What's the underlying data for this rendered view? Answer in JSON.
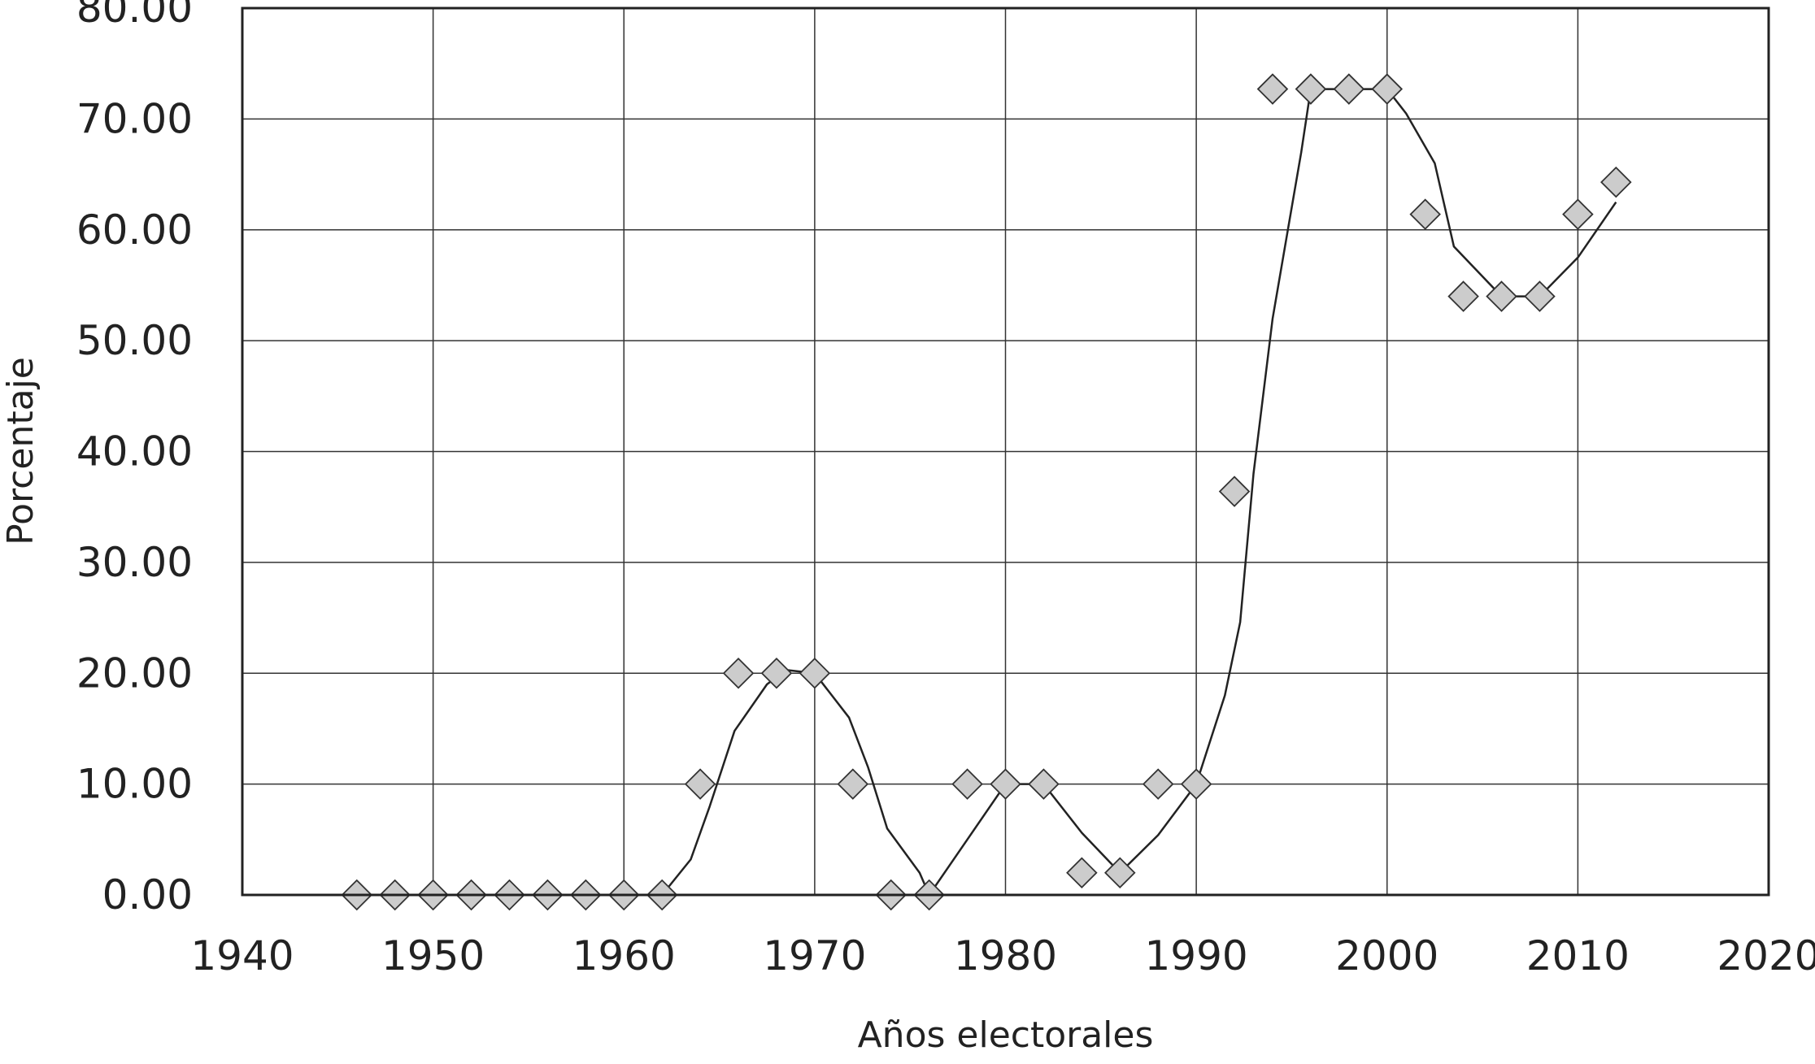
{
  "chart_data": {
    "type": "scatter",
    "title": "",
    "xlabel": "Años electorales",
    "ylabel": "Porcentaje",
    "xlim": [
      1940,
      2020
    ],
    "ylim": [
      0,
      80
    ],
    "grid": true,
    "x_ticks": [
      1940,
      1950,
      1960,
      1970,
      1980,
      1990,
      2000,
      2010,
      2020
    ],
    "y_ticks": [
      0,
      10,
      20,
      30,
      40,
      50,
      60,
      70,
      80
    ],
    "x_tick_labels": [
      "1940",
      "1950",
      "1960",
      "1970",
      "1980",
      "1990",
      "2000",
      "2010",
      "2020"
    ],
    "y_tick_labels": [
      "0.00",
      "10.00",
      "20.00",
      "30.00",
      "40.00",
      "50.00",
      "60.00",
      "70.00",
      "80.00"
    ],
    "marker": "diamond",
    "marker_color": "#cccccc",
    "line_color": "#222222",
    "points": [
      {
        "x": 1946,
        "y": 0
      },
      {
        "x": 1948,
        "y": 0
      },
      {
        "x": 1950,
        "y": 0
      },
      {
        "x": 1952,
        "y": 0
      },
      {
        "x": 1954,
        "y": 0
      },
      {
        "x": 1956,
        "y": 0
      },
      {
        "x": 1958,
        "y": 0
      },
      {
        "x": 1960,
        "y": 0
      },
      {
        "x": 1962,
        "y": 0
      },
      {
        "x": 1964,
        "y": 10
      },
      {
        "x": 1966,
        "y": 20
      },
      {
        "x": 1968,
        "y": 20
      },
      {
        "x": 1970,
        "y": 20
      },
      {
        "x": 1972,
        "y": 10
      },
      {
        "x": 1974,
        "y": 0
      },
      {
        "x": 1976,
        "y": 0
      },
      {
        "x": 1978,
        "y": 10
      },
      {
        "x": 1980,
        "y": 10
      },
      {
        "x": 1982,
        "y": 10
      },
      {
        "x": 1984,
        "y": 2
      },
      {
        "x": 1986,
        "y": 2
      },
      {
        "x": 1988,
        "y": 10
      },
      {
        "x": 1990,
        "y": 10
      },
      {
        "x": 1992,
        "y": 36.4
      },
      {
        "x": 1994,
        "y": 72.7
      },
      {
        "x": 1996,
        "y": 72.7
      },
      {
        "x": 1998,
        "y": 72.7
      },
      {
        "x": 2000,
        "y": 72.7
      },
      {
        "x": 2002,
        "y": 61.4
      },
      {
        "x": 2004,
        "y": 54
      },
      {
        "x": 2006,
        "y": 54
      },
      {
        "x": 2008,
        "y": 54
      },
      {
        "x": 2010,
        "y": 61.4
      },
      {
        "x": 2012,
        "y": 64.3
      }
    ],
    "trend_line": [
      {
        "x": 1962,
        "y": 0
      },
      {
        "x": 1963.5,
        "y": 3.2
      },
      {
        "x": 1964.5,
        "y": 8
      },
      {
        "x": 1965.8,
        "y": 14.8
      },
      {
        "x": 1967.5,
        "y": 19
      },
      {
        "x": 1968.5,
        "y": 20.3
      },
      {
        "x": 1970,
        "y": 20
      },
      {
        "x": 1971.8,
        "y": 16
      },
      {
        "x": 1972.8,
        "y": 11.5
      },
      {
        "x": 1973.8,
        "y": 6
      },
      {
        "x": 1975.5,
        "y": 2
      },
      {
        "x": 1976,
        "y": 0
      },
      {
        "x": 1978,
        "y": 5
      },
      {
        "x": 1980,
        "y": 10
      },
      {
        "x": 1982,
        "y": 10
      },
      {
        "x": 1984,
        "y": 5.6
      },
      {
        "x": 1986,
        "y": 2
      },
      {
        "x": 1988,
        "y": 5.4
      },
      {
        "x": 1990,
        "y": 10
      },
      {
        "x": 1991.5,
        "y": 18
      },
      {
        "x": 1992.3,
        "y": 24.6
      },
      {
        "x": 1993,
        "y": 38
      },
      {
        "x": 1994,
        "y": 52
      },
      {
        "x": 1994.7,
        "y": 59
      },
      {
        "x": 1995.5,
        "y": 67
      },
      {
        "x": 1996,
        "y": 72.7
      },
      {
        "x": 1998,
        "y": 72.7
      },
      {
        "x": 2000,
        "y": 72.7
      },
      {
        "x": 2001,
        "y": 70.5
      },
      {
        "x": 2002.5,
        "y": 66
      },
      {
        "x": 2003.5,
        "y": 58.5
      },
      {
        "x": 2006,
        "y": 54
      },
      {
        "x": 2008,
        "y": 54
      },
      {
        "x": 2010,
        "y": 57.5
      },
      {
        "x": 2012,
        "y": 62.5
      }
    ]
  }
}
